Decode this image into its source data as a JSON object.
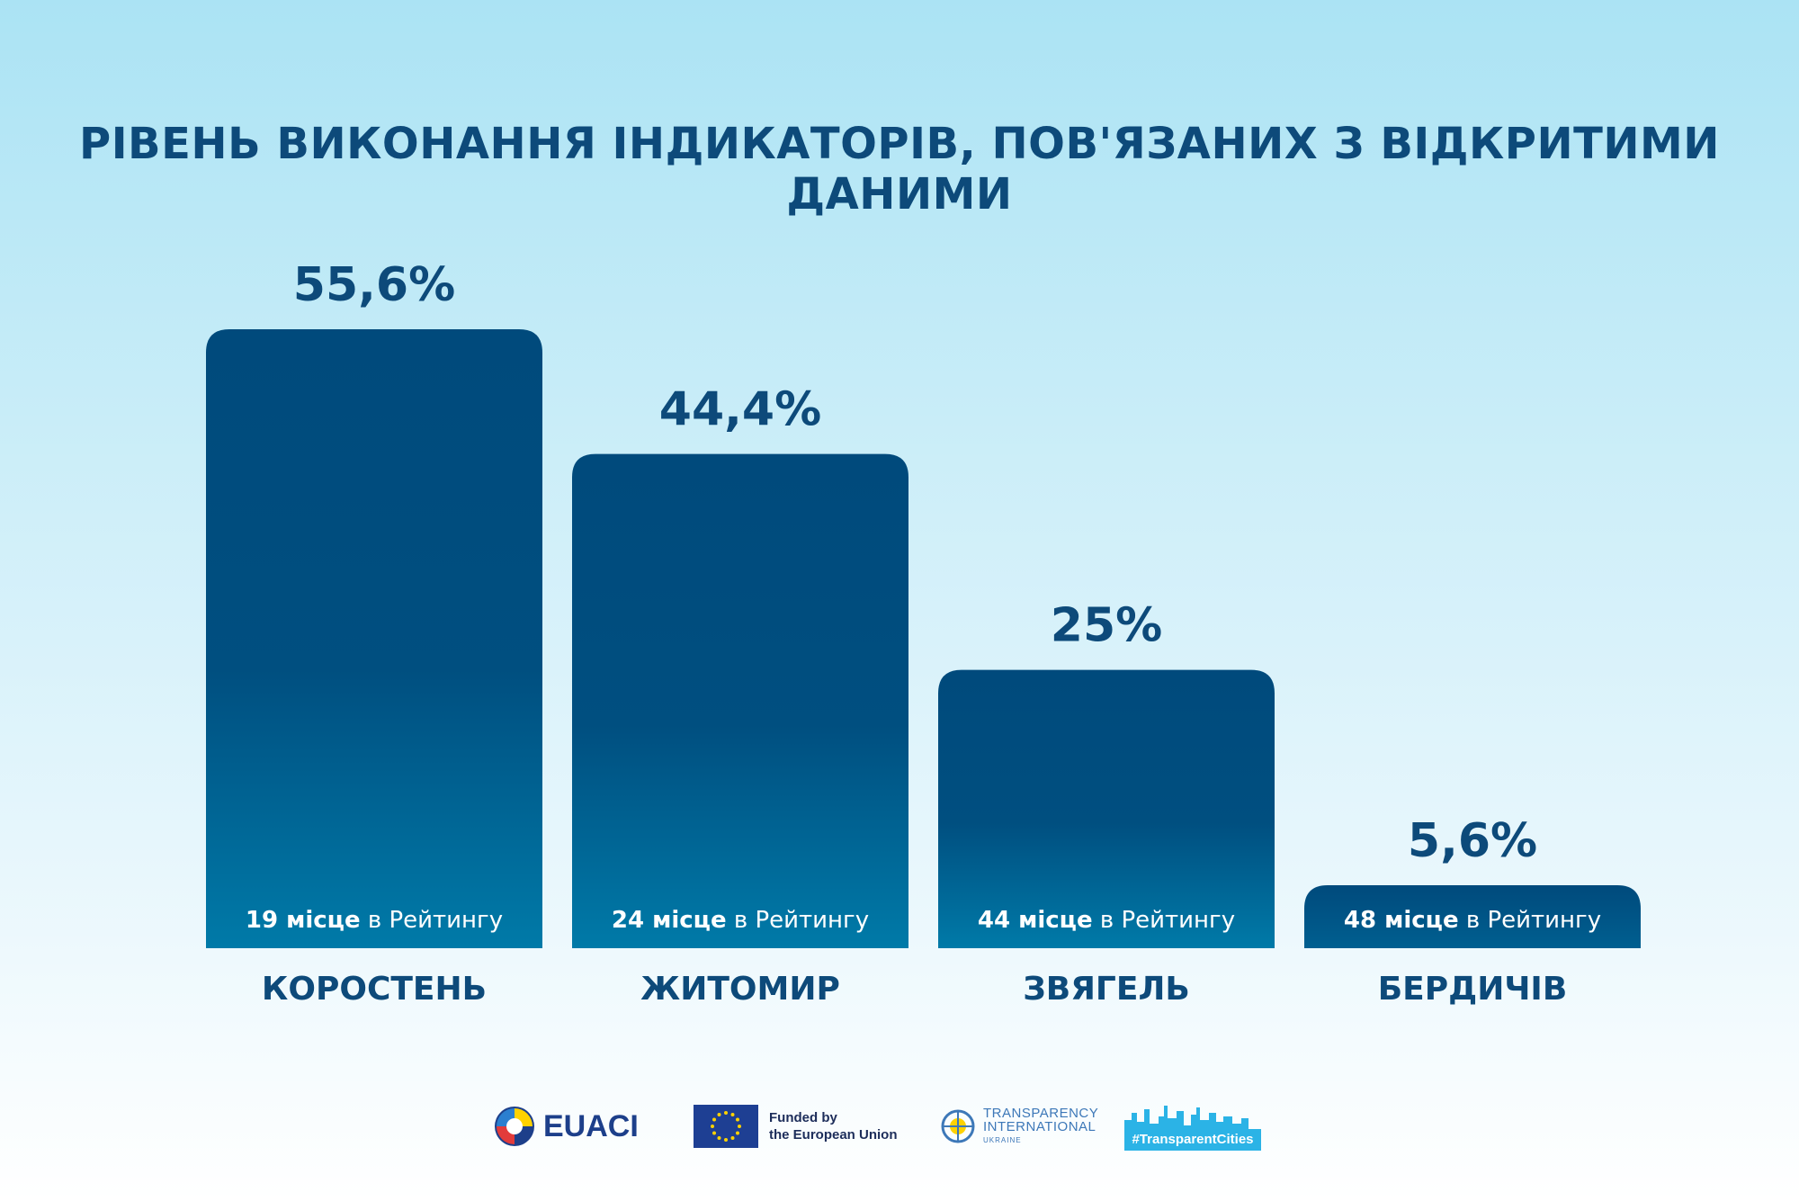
{
  "chart_data": {
    "type": "bar",
    "title": "РІВЕНЬ ВИКОНАННЯ ІНДИКАТОРІВ, ПОВ'ЯЗАНИХ З ВІДКРИТИМИ ДАНИМИ",
    "categories": [
      "КОРОСТЕНЬ",
      "ЖИТОМИР",
      "ЗВЯГЕЛЬ",
      "БЕРДИЧІВ"
    ],
    "values": [
      55.6,
      44.4,
      25,
      5.6
    ],
    "value_labels": [
      "55,6%",
      "44,4%",
      "25%",
      "5,6%"
    ],
    "rank_numbers": [
      "19 місце",
      "24 місце",
      "44 місце",
      "48 місце"
    ],
    "rank_suffix": " в Рейтингу",
    "ylim": [
      0,
      55.6
    ],
    "grid": false,
    "colors": {
      "bar_top": "#004a7c",
      "bar_bottom": "#007aa8",
      "text": "#0d4a7a"
    }
  },
  "footer": {
    "euaci": "EUACI",
    "eu_line1": "Funded by",
    "eu_line2": "the European Union",
    "ti_line1": "TRANSPARENCY",
    "ti_line2": "INTERNATIONAL",
    "ti_line3": "UKRAINE",
    "tc_tag": "#TransparentCities"
  }
}
